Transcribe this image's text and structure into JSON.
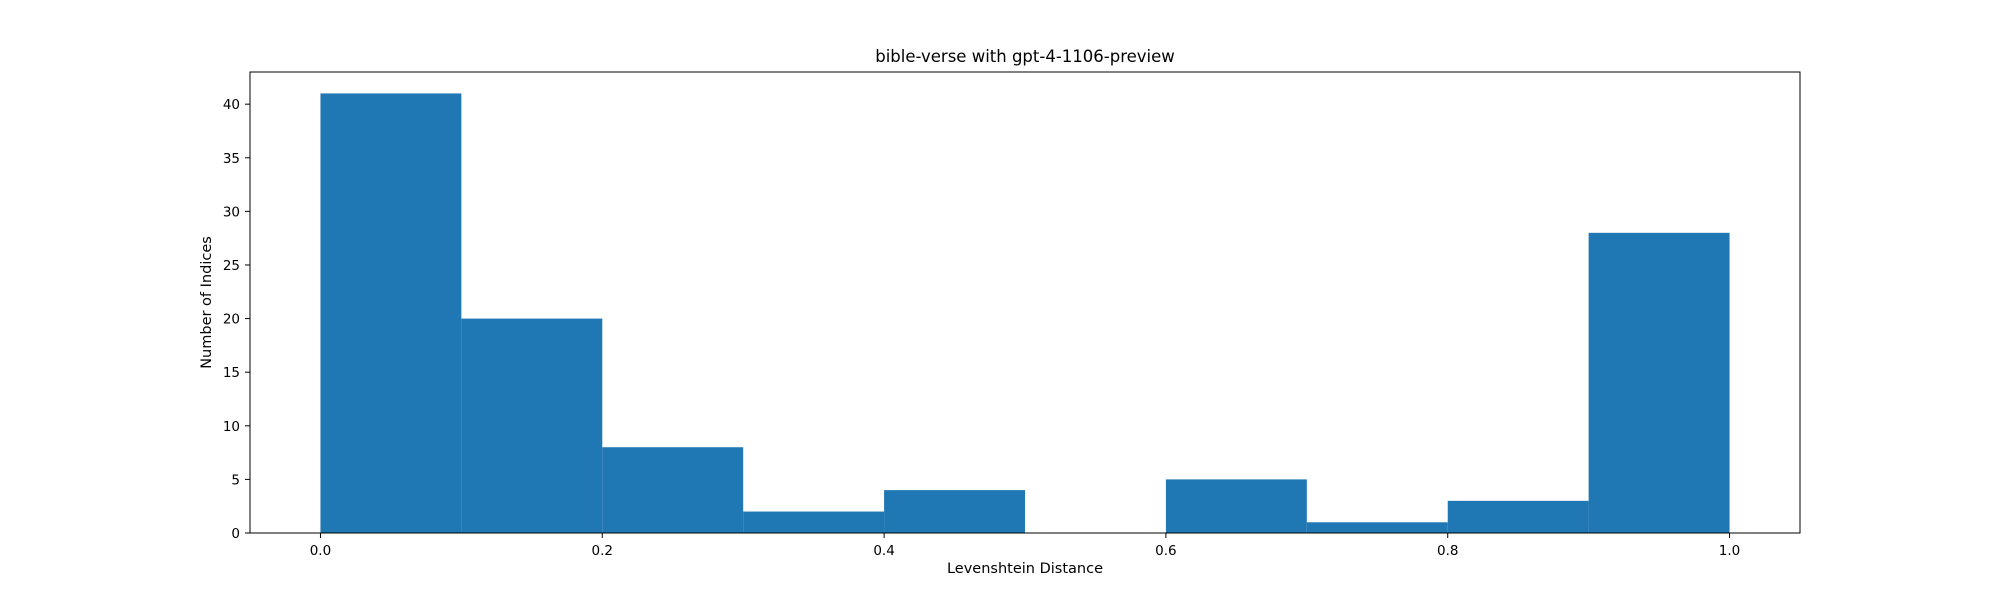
{
  "colors": {
    "bar": "#1f77b4",
    "axis": "#000000",
    "background": "#ffffff"
  },
  "chart_data": {
    "type": "bar",
    "title": "bible-verse with gpt-4-1106-preview",
    "xlabel": "Levenshtein Distance",
    "ylabel": "Number of Indices",
    "xlim": [
      -0.05,
      1.05
    ],
    "ylim": [
      0,
      43
    ],
    "grid": false,
    "bins": [
      {
        "start": 0.0,
        "end": 0.1,
        "count": 41
      },
      {
        "start": 0.1,
        "end": 0.2,
        "count": 20
      },
      {
        "start": 0.2,
        "end": 0.3,
        "count": 8
      },
      {
        "start": 0.3,
        "end": 0.4,
        "count": 2
      },
      {
        "start": 0.4,
        "end": 0.5,
        "count": 4
      },
      {
        "start": 0.5,
        "end": 0.6,
        "count": 0
      },
      {
        "start": 0.6,
        "end": 0.7,
        "count": 5
      },
      {
        "start": 0.7,
        "end": 0.8,
        "count": 1
      },
      {
        "start": 0.8,
        "end": 0.9,
        "count": 3
      },
      {
        "start": 0.9,
        "end": 1.0,
        "count": 28
      }
    ],
    "xticks": [
      0.0,
      0.2,
      0.4,
      0.6,
      0.8,
      1.0
    ],
    "xtick_labels": [
      "0.0",
      "0.2",
      "0.4",
      "0.6",
      "0.8",
      "1.0"
    ],
    "yticks": [
      0,
      5,
      10,
      15,
      20,
      25,
      30,
      35,
      40
    ],
    "ytick_labels": [
      "0",
      "5",
      "10",
      "15",
      "20",
      "25",
      "30",
      "35",
      "40"
    ]
  }
}
